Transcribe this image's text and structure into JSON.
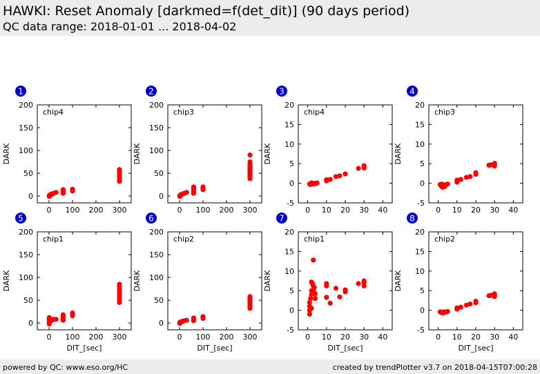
{
  "header": {
    "title": "HAWKI: Reset Anomaly [darkmed=f(det_dit)] (90 days period)",
    "subtitle": "QC data range: 2018-01-01 ... 2018-04-02"
  },
  "footer": {
    "left": "powered by QC: www.eso.org/HC",
    "right": "created by trendPlotter v3.7 on 2018-04-15T07:00:28"
  },
  "colors": {
    "marker": "#ff0000",
    "badge": "#0000cc",
    "background_band": "#ececec"
  },
  "chart_data": [
    {
      "type": "scatter",
      "badge": "1",
      "label": "chip4",
      "xlabel": "",
      "ylabel": "DARK",
      "xlim": [
        -50,
        350
      ],
      "ylim": [
        -15,
        200
      ],
      "xticks": [
        0,
        100,
        200,
        300
      ],
      "yticks": [
        0,
        50,
        100,
        150,
        200
      ],
      "points": [
        [
          1,
          -1
        ],
        [
          1,
          1
        ],
        [
          1.5,
          0.5
        ],
        [
          2,
          2
        ],
        [
          3,
          2
        ],
        [
          4,
          1
        ],
        [
          6,
          3
        ],
        [
          8,
          3
        ],
        [
          10,
          4
        ],
        [
          15,
          5
        ],
        [
          20,
          6
        ],
        [
          30,
          8
        ],
        [
          60,
          6
        ],
        [
          60,
          9
        ],
        [
          60,
          12
        ],
        [
          60,
          14
        ],
        [
          100,
          11
        ],
        [
          100,
          13
        ],
        [
          100,
          15
        ],
        [
          300,
          32
        ],
        [
          300,
          36
        ],
        [
          300,
          40
        ],
        [
          300,
          44
        ],
        [
          300,
          48
        ],
        [
          300,
          52
        ],
        [
          300,
          55
        ],
        [
          300,
          58
        ]
      ]
    },
    {
      "type": "scatter",
      "badge": "2",
      "label": "chip3",
      "xlabel": "",
      "ylabel": "DARK",
      "xlim": [
        -50,
        350
      ],
      "ylim": [
        -15,
        200
      ],
      "xticks": [
        0,
        100,
        200,
        300
      ],
      "yticks": [
        0,
        50,
        100,
        150,
        200
      ],
      "points": [
        [
          1,
          -1
        ],
        [
          1,
          1
        ],
        [
          2,
          0
        ],
        [
          3,
          2
        ],
        [
          4,
          2
        ],
        [
          6,
          3
        ],
        [
          8,
          3
        ],
        [
          10,
          4
        ],
        [
          15,
          5
        ],
        [
          20,
          6
        ],
        [
          30,
          8
        ],
        [
          60,
          6
        ],
        [
          60,
          10
        ],
        [
          60,
          14
        ],
        [
          60,
          18
        ],
        [
          60,
          20
        ],
        [
          100,
          14
        ],
        [
          100,
          17
        ],
        [
          100,
          20
        ],
        [
          300,
          38
        ],
        [
          300,
          42
        ],
        [
          300,
          46
        ],
        [
          300,
          50
        ],
        [
          300,
          54
        ],
        [
          300,
          58
        ],
        [
          300,
          62
        ],
        [
          300,
          66
        ],
        [
          300,
          70
        ],
        [
          300,
          75
        ],
        [
          300,
          90
        ]
      ]
    },
    {
      "type": "scatter",
      "badge": "3",
      "label": "chip4",
      "xlabel": "",
      "ylabel": "DARK",
      "xlim": [
        -5,
        45
      ],
      "ylim": [
        -5,
        20
      ],
      "xticks": [
        0,
        10,
        20,
        30,
        40
      ],
      "yticks": [
        -5,
        0,
        5,
        10,
        15,
        20
      ],
      "points": [
        [
          1,
          -0.2
        ],
        [
          1.5,
          -0.3
        ],
        [
          2,
          -0.1
        ],
        [
          2,
          0.1
        ],
        [
          3,
          -0.2
        ],
        [
          3.5,
          0
        ],
        [
          4,
          -0.1
        ],
        [
          5,
          0.1
        ],
        [
          10,
          0.6
        ],
        [
          10,
          0.9
        ],
        [
          12,
          1
        ],
        [
          15,
          1.7
        ],
        [
          17,
          1.9
        ],
        [
          20,
          2.4
        ],
        [
          27,
          3.8
        ],
        [
          30,
          3.9
        ],
        [
          30,
          4.2
        ],
        [
          30,
          4.5
        ]
      ]
    },
    {
      "type": "scatter",
      "badge": "4",
      "label": "chip3",
      "xlabel": "",
      "ylabel": "DARK",
      "xlim": [
        -5,
        45
      ],
      "ylim": [
        -5,
        20
      ],
      "xticks": [
        0,
        10,
        20,
        30,
        40
      ],
      "yticks": [
        -5,
        0,
        5,
        10,
        15,
        20
      ],
      "points": [
        [
          1,
          -0.3
        ],
        [
          1.5,
          -0.6
        ],
        [
          2,
          -0.9
        ],
        [
          2,
          -0.2
        ],
        [
          2.5,
          -1
        ],
        [
          3,
          -0.5
        ],
        [
          3.5,
          -0.8
        ],
        [
          4,
          -0.4
        ],
        [
          5,
          -0.2
        ],
        [
          10,
          0.3
        ],
        [
          10,
          0.8
        ],
        [
          12,
          1
        ],
        [
          15,
          1.5
        ],
        [
          17,
          1.7
        ],
        [
          20,
          2.3
        ],
        [
          20,
          2.7
        ],
        [
          27,
          4.6
        ],
        [
          28,
          4.7
        ],
        [
          30,
          4.4
        ],
        [
          30,
          4.8
        ],
        [
          30,
          5.1
        ]
      ]
    },
    {
      "type": "scatter",
      "badge": "5",
      "label": "chip1",
      "xlabel": "DIT_[sec]",
      "ylabel": "DARK",
      "xlim": [
        -50,
        350
      ],
      "ylim": [
        -15,
        200
      ],
      "xticks": [
        0,
        100,
        200,
        300
      ],
      "yticks": [
        0,
        50,
        100,
        150,
        200
      ],
      "points": [
        [
          1,
          -2
        ],
        [
          1,
          0
        ],
        [
          1,
          3
        ],
        [
          1,
          6
        ],
        [
          1,
          9
        ],
        [
          1,
          12
        ],
        [
          2,
          2
        ],
        [
          3,
          4
        ],
        [
          5,
          7
        ],
        [
          8,
          5
        ],
        [
          10,
          6
        ],
        [
          15,
          7
        ],
        [
          20,
          8
        ],
        [
          30,
          8
        ],
        [
          60,
          6
        ],
        [
          60,
          10
        ],
        [
          60,
          14
        ],
        [
          60,
          18
        ],
        [
          100,
          16
        ],
        [
          100,
          19
        ],
        [
          100,
          22
        ],
        [
          300,
          45
        ],
        [
          300,
          50
        ],
        [
          300,
          55
        ],
        [
          300,
          60
        ],
        [
          300,
          65
        ],
        [
          300,
          70
        ],
        [
          300,
          75
        ],
        [
          300,
          80
        ],
        [
          300,
          85
        ]
      ]
    },
    {
      "type": "scatter",
      "badge": "6",
      "label": "chip2",
      "xlabel": "DIT_[sec]",
      "ylabel": "DARK",
      "xlim": [
        -50,
        350
      ],
      "ylim": [
        -15,
        200
      ],
      "xticks": [
        0,
        100,
        200,
        300
      ],
      "yticks": [
        0,
        50,
        100,
        150,
        200
      ],
      "points": [
        [
          1,
          -1
        ],
        [
          1,
          1
        ],
        [
          2,
          0
        ],
        [
          3,
          2
        ],
        [
          5,
          2
        ],
        [
          8,
          3
        ],
        [
          10,
          3
        ],
        [
          15,
          4
        ],
        [
          20,
          5
        ],
        [
          30,
          6
        ],
        [
          60,
          5
        ],
        [
          60,
          8
        ],
        [
          60,
          11
        ],
        [
          100,
          10
        ],
        [
          100,
          12
        ],
        [
          100,
          14
        ],
        [
          300,
          32
        ],
        [
          300,
          36
        ],
        [
          300,
          40
        ],
        [
          300,
          44
        ],
        [
          300,
          48
        ],
        [
          300,
          52
        ],
        [
          300,
          56
        ],
        [
          300,
          58
        ]
      ]
    },
    {
      "type": "scatter",
      "badge": "7",
      "label": "chip1",
      "xlabel": "DIT_[sec]",
      "ylabel": "DARK",
      "xlim": [
        -5,
        45
      ],
      "ylim": [
        -5,
        20
      ],
      "xticks": [
        0,
        10,
        20,
        30,
        40
      ],
      "yticks": [
        -5,
        0,
        5,
        10,
        15,
        20
      ],
      "points": [
        [
          1,
          -1
        ],
        [
          1,
          0
        ],
        [
          1,
          1
        ],
        [
          1,
          2
        ],
        [
          1.5,
          3
        ],
        [
          2,
          4
        ],
        [
          2,
          5
        ],
        [
          2,
          7.2
        ],
        [
          2.5,
          6.8
        ],
        [
          3,
          5
        ],
        [
          3,
          6.2
        ],
        [
          3.5,
          5.8
        ],
        [
          4,
          4.2
        ],
        [
          4,
          3
        ],
        [
          3,
          12.8
        ],
        [
          2,
          0.5
        ],
        [
          10,
          3.3
        ],
        [
          10,
          6.2
        ],
        [
          10,
          6.8
        ],
        [
          12,
          1.8
        ],
        [
          15,
          5.6
        ],
        [
          17,
          3.4
        ],
        [
          20,
          4.7
        ],
        [
          20,
          5.2
        ],
        [
          27,
          6.8
        ],
        [
          30,
          6.2
        ],
        [
          30,
          7
        ],
        [
          30,
          7.5
        ]
      ]
    },
    {
      "type": "scatter",
      "badge": "8",
      "label": "chip2",
      "xlabel": "DIT_[sec]",
      "ylabel": "DARK",
      "xlim": [
        -5,
        45
      ],
      "ylim": [
        -5,
        20
      ],
      "xticks": [
        0,
        10,
        20,
        30,
        40
      ],
      "yticks": [
        -5,
        0,
        5,
        10,
        15,
        20
      ],
      "points": [
        [
          1,
          -0.4
        ],
        [
          1.5,
          -0.6
        ],
        [
          2,
          -0.5
        ],
        [
          2.5,
          -0.7
        ],
        [
          3,
          -0.4
        ],
        [
          4,
          -0.5
        ],
        [
          5,
          -0.3
        ],
        [
          10,
          0.3
        ],
        [
          10,
          0.6
        ],
        [
          12,
          0.8
        ],
        [
          15,
          1.3
        ],
        [
          17,
          1.6
        ],
        [
          20,
          1.9
        ],
        [
          20,
          2.3
        ],
        [
          27,
          3.7
        ],
        [
          28,
          3.8
        ],
        [
          30,
          3.5
        ],
        [
          30,
          3.9
        ],
        [
          30,
          4.2
        ]
      ]
    }
  ]
}
